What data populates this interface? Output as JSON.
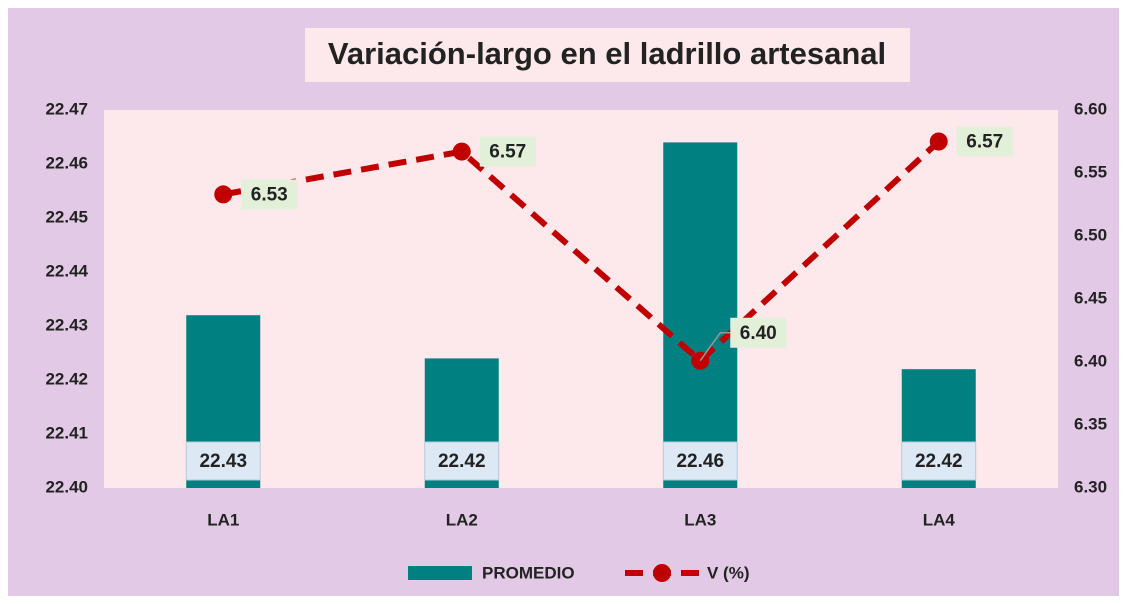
{
  "chart_data": {
    "type": "bar",
    "title": "Variación-largo en el ladrillo artesanal",
    "categories": [
      "LA1",
      "LA2",
      "LA3",
      "LA4"
    ],
    "series": [
      {
        "name": "PROMEDIO",
        "type": "bar",
        "color": "#008080",
        "values": [
          22.432,
          22.424,
          22.464,
          22.422
        ],
        "value_labels": [
          "22.43",
          "22.42",
          "22.46",
          "22.42"
        ]
      },
      {
        "name": "V (%)",
        "type": "line",
        "axis": "y2",
        "color": "#c00000",
        "values": [
          6.533,
          6.567,
          6.401,
          6.575
        ],
        "value_labels": [
          "6.53",
          "6.57",
          "6.40",
          "6.57"
        ]
      }
    ],
    "ylim": [
      22.4,
      22.47
    ],
    "yticks": [
      {
        "value": 22.4,
        "label": "22.40"
      },
      {
        "value": 22.41,
        "label": "22.41"
      },
      {
        "value": 22.42,
        "label": "22.42"
      },
      {
        "value": 22.43,
        "label": "22.43"
      },
      {
        "value": 22.44,
        "label": "22.44"
      },
      {
        "value": 22.45,
        "label": "22.45"
      },
      {
        "value": 22.46,
        "label": "22.46"
      },
      {
        "value": 22.47,
        "label": "22.47"
      }
    ],
    "y2lim": [
      6.3,
      6.6
    ],
    "y2ticks": [
      {
        "value": 6.3,
        "label": "6.30"
      },
      {
        "value": 6.35,
        "label": "6.35"
      },
      {
        "value": 6.4,
        "label": "6.40"
      },
      {
        "value": 6.45,
        "label": "6.45"
      },
      {
        "value": 6.5,
        "label": "6.50"
      },
      {
        "value": 6.55,
        "label": "6.55"
      },
      {
        "value": 6.6,
        "label": "6.60"
      }
    ],
    "grid": false,
    "legend": "bottom"
  }
}
